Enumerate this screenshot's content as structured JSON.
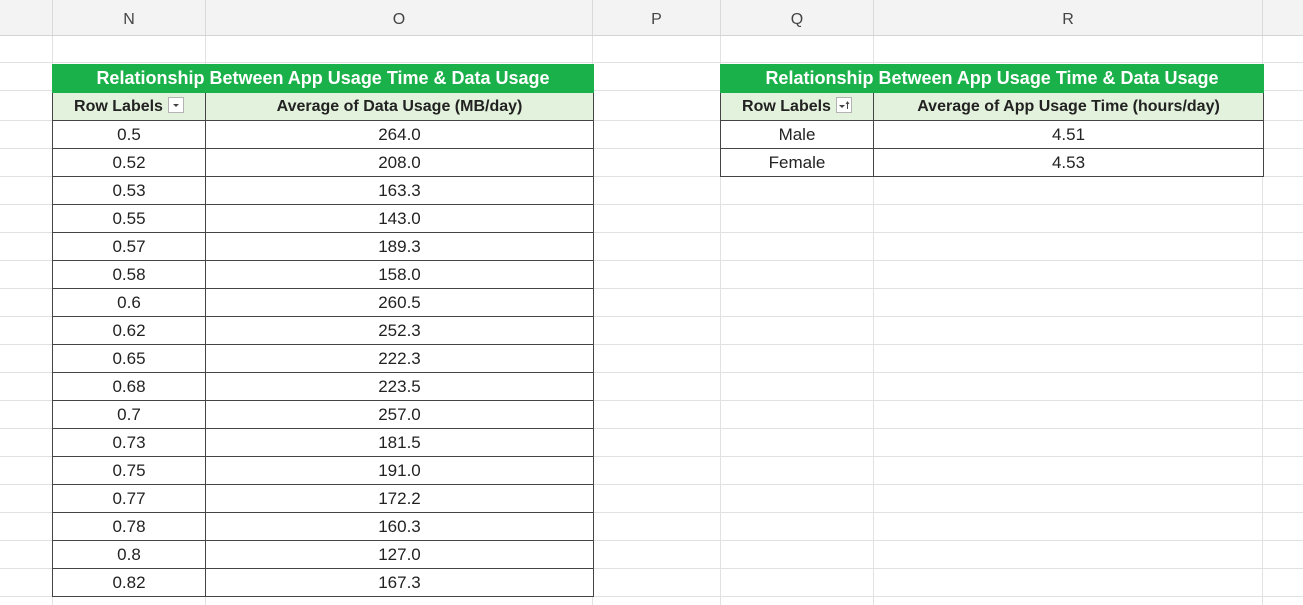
{
  "columns": [
    "N",
    "O",
    "P",
    "Q",
    "R"
  ],
  "pivot_left": {
    "title": "Relationship Between App Usage Time & Data Usage",
    "header": {
      "row_labels": "Row Labels",
      "value_label": "Average of Data Usage (MB/day)",
      "filter_icon": "dropdown-arrow-icon"
    },
    "rows": [
      {
        "label": "0.5",
        "value": "264.0"
      },
      {
        "label": "0.52",
        "value": "208.0"
      },
      {
        "label": "0.53",
        "value": "163.3"
      },
      {
        "label": "0.55",
        "value": "143.0"
      },
      {
        "label": "0.57",
        "value": "189.3"
      },
      {
        "label": "0.58",
        "value": "158.0"
      },
      {
        "label": "0.6",
        "value": "260.5"
      },
      {
        "label": "0.62",
        "value": "252.3"
      },
      {
        "label": "0.65",
        "value": "222.3"
      },
      {
        "label": "0.68",
        "value": "223.5"
      },
      {
        "label": "0.7",
        "value": "257.0"
      },
      {
        "label": "0.73",
        "value": "181.5"
      },
      {
        "label": "0.75",
        "value": "191.0"
      },
      {
        "label": "0.77",
        "value": "172.2"
      },
      {
        "label": "0.78",
        "value": "160.3"
      },
      {
        "label": "0.8",
        "value": "127.0"
      },
      {
        "label": "0.82",
        "value": "167.3"
      }
    ]
  },
  "pivot_right": {
    "title": "Relationship Between App Usage Time & Data Usage",
    "header": {
      "row_labels": "Row Labels",
      "value_label": "Average of App Usage Time (hours/day)",
      "filter_icon": "sort-ascending-filter-icon"
    },
    "rows": [
      {
        "label": "Male",
        "value": "4.51"
      },
      {
        "label": "Female",
        "value": "4.53"
      }
    ]
  },
  "colors": {
    "title_bg": "#1bb14a",
    "header_bg": "#e3f2dc",
    "grid": "#e1e1e1"
  }
}
